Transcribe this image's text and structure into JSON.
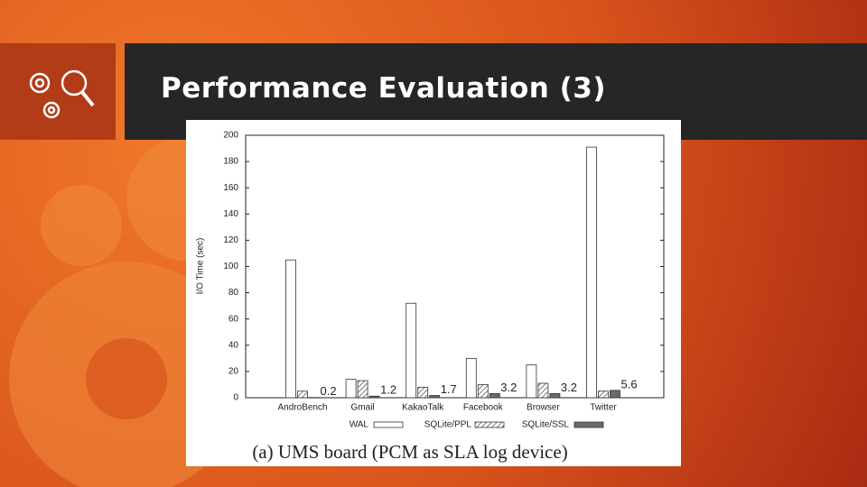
{
  "slide": {
    "title": "Performance Evaluation (3)"
  },
  "chart_data": {
    "type": "bar",
    "ylabel": "I/O Time (sec)",
    "caption": "(a) UMS board (PCM as SLA log device)",
    "categories": [
      "AndroBench",
      "Gmail",
      "KakaoTalk",
      "Facebook",
      "Browser",
      "Twitter"
    ],
    "series": [
      {
        "name": "WAL",
        "color": "#ffffff",
        "values": [
          105,
          14,
          72,
          30,
          25,
          191
        ]
      },
      {
        "name": "SQLite/PPL",
        "color": "#ffffff",
        "hatch": true,
        "values": [
          5,
          13,
          8,
          10,
          11,
          5
        ]
      },
      {
        "name": "SQLite/SSL",
        "color": "#6a6a6a",
        "values": [
          0.2,
          1.2,
          1.7,
          3.2,
          3.2,
          5.6
        ],
        "data_labels": true
      }
    ],
    "ylim": [
      0,
      200
    ],
    "yticks": [
      0,
      20,
      40,
      60,
      80,
      100,
      120,
      140,
      160,
      180,
      200
    ],
    "legend": "bottom"
  }
}
